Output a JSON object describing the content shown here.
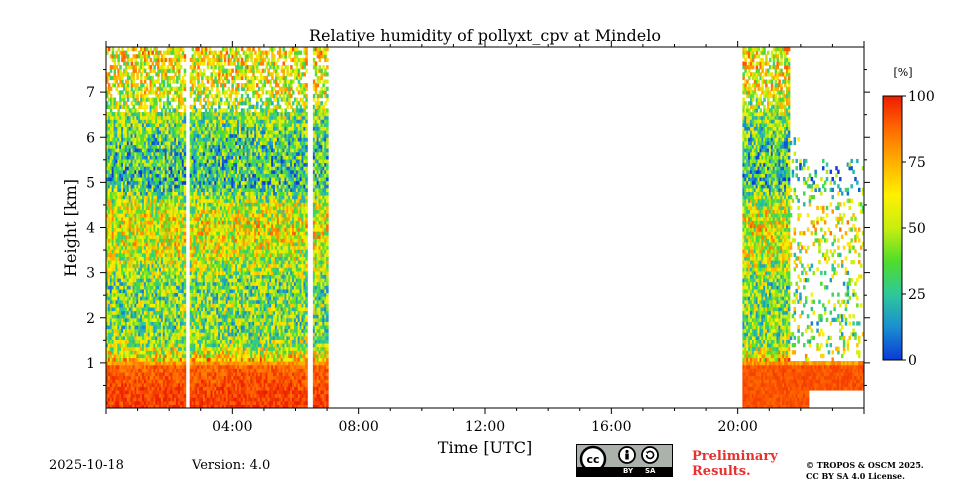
{
  "chart_data": {
    "type": "heatmap",
    "title": "Relative humidity of pollyxt_cpv at Mindelo",
    "xlabel": "Time [UTC]",
    "ylabel": "Height [km]",
    "xlim": [
      0,
      24
    ],
    "ylim": [
      0,
      8
    ],
    "x_ticks": [
      {
        "value": 4,
        "label": "04:00"
      },
      {
        "value": 8,
        "label": "08:00"
      },
      {
        "value": 12,
        "label": "12:00"
      },
      {
        "value": 16,
        "label": "16:00"
      },
      {
        "value": 20,
        "label": "20:00"
      }
    ],
    "y_ticks": [
      {
        "value": 1,
        "label": "1"
      },
      {
        "value": 2,
        "label": "2"
      },
      {
        "value": 3,
        "label": "3"
      },
      {
        "value": 4,
        "label": "4"
      },
      {
        "value": 5,
        "label": "5"
      },
      {
        "value": 6,
        "label": "6"
      },
      {
        "value": 7,
        "label": "7"
      }
    ],
    "colorbar": {
      "unit": "[%]",
      "range": [
        0,
        100
      ],
      "ticks": [
        {
          "value": 0,
          "label": "0"
        },
        {
          "value": 25,
          "label": "25"
        },
        {
          "value": 50,
          "label": "50"
        },
        {
          "value": 75,
          "label": "75"
        },
        {
          "value": 100,
          "label": "100"
        }
      ],
      "colormap": [
        "#0a3ad6",
        "#1a8fd0",
        "#2fc89a",
        "#50dd2a",
        "#c8ee10",
        "#fff000",
        "#ffb000",
        "#ff6a00",
        "#ee1c00"
      ]
    },
    "measurement_periods": [
      {
        "start": 0.0,
        "end": 2.5
      },
      {
        "start": 2.65,
        "end": 6.35
      },
      {
        "start": 6.55,
        "end": 7.0
      },
      {
        "start": 20.15,
        "end": 24.0
      }
    ],
    "profile": {
      "heights_km": [
        0.0,
        0.5,
        0.9,
        1.1,
        1.4,
        1.8,
        2.2,
        2.6,
        3.0,
        3.5,
        4.0,
        4.5,
        5.0,
        5.5,
        6.0,
        6.5,
        7.0,
        8.0
      ],
      "rh_percent": [
        95,
        92,
        88,
        60,
        45,
        40,
        42,
        38,
        45,
        55,
        60,
        50,
        25,
        30,
        35,
        45,
        55,
        65
      ]
    }
  },
  "footer": {
    "date": "2025-10-18",
    "version": "Version: 4.0",
    "preliminary_line1": "Preliminary",
    "preliminary_line2": "Results.",
    "copyright_line1": "© TROPOS & OSCM 2025.",
    "copyright_line2": "CC BY SA 4.0 License.",
    "license_badge": {
      "main": "cc",
      "by": "BY",
      "sa": "SA"
    }
  }
}
